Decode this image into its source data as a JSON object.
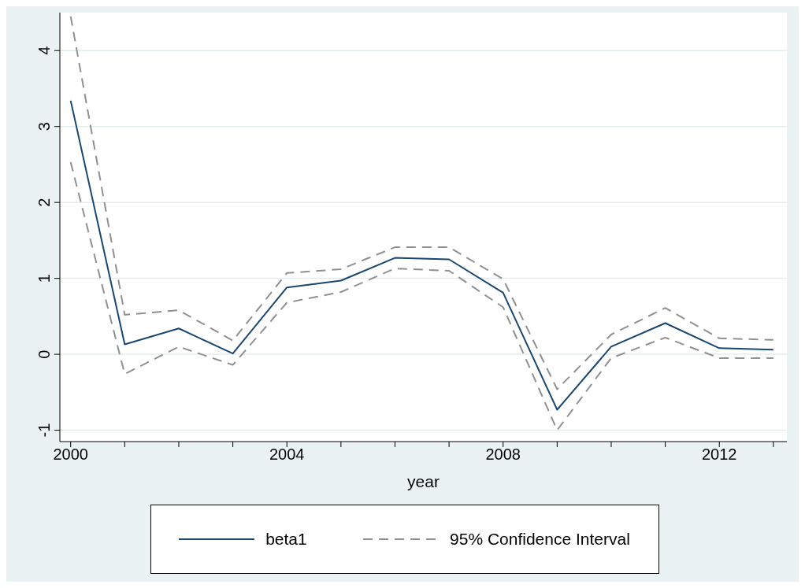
{
  "chart_data": {
    "type": "line",
    "xlabel": "year",
    "x": [
      2000,
      2001,
      2002,
      2003,
      2004,
      2005,
      2006,
      2007,
      2008,
      2009,
      2010,
      2011,
      2012,
      2013
    ],
    "series": [
      {
        "name": "beta1",
        "color": "#1a476f",
        "line_style": "solid",
        "values": [
          3.34,
          0.13,
          0.34,
          0.01,
          0.88,
          0.97,
          1.27,
          1.25,
          0.81,
          -0.73,
          0.1,
          0.41,
          0.08,
          0.06
        ]
      },
      {
        "name": "95% Confidence Interval",
        "color": "#909090",
        "line_style": "dashed",
        "values": [
          4.45,
          0.52,
          0.58,
          0.18,
          1.07,
          1.12,
          1.41,
          1.41,
          0.99,
          -0.46,
          0.26,
          0.61,
          0.21,
          0.19
        ]
      },
      {
        "color": "#909090",
        "line_style": "dashed",
        "values": [
          2.53,
          -0.26,
          0.1,
          -0.14,
          0.68,
          0.82,
          1.13,
          1.1,
          0.62,
          -1.0,
          -0.05,
          0.22,
          -0.05,
          -0.05
        ]
      }
    ],
    "xlim": [
      1999.8,
      2013.25
    ],
    "xticks": [
      2000,
      {
        "value": 2001,
        "label": null
      },
      {
        "value": 2002,
        "label": null
      },
      {
        "value": 2003,
        "label": null
      },
      2004,
      {
        "value": 2005,
        "label": null
      },
      {
        "value": 2006,
        "label": null
      },
      {
        "value": 2007,
        "label": null
      },
      2008,
      {
        "value": 2009,
        "label": null
      },
      {
        "value": 2010,
        "label": null
      },
      {
        "value": 2011,
        "label": null
      },
      2012,
      {
        "value": 2013,
        "label": null
      }
    ],
    "ylim": [
      -1.15,
      4.5
    ],
    "yticks": [
      -1,
      0,
      1,
      2,
      3,
      4
    ],
    "grid": "y",
    "legend": "bottom",
    "marker": "none"
  }
}
